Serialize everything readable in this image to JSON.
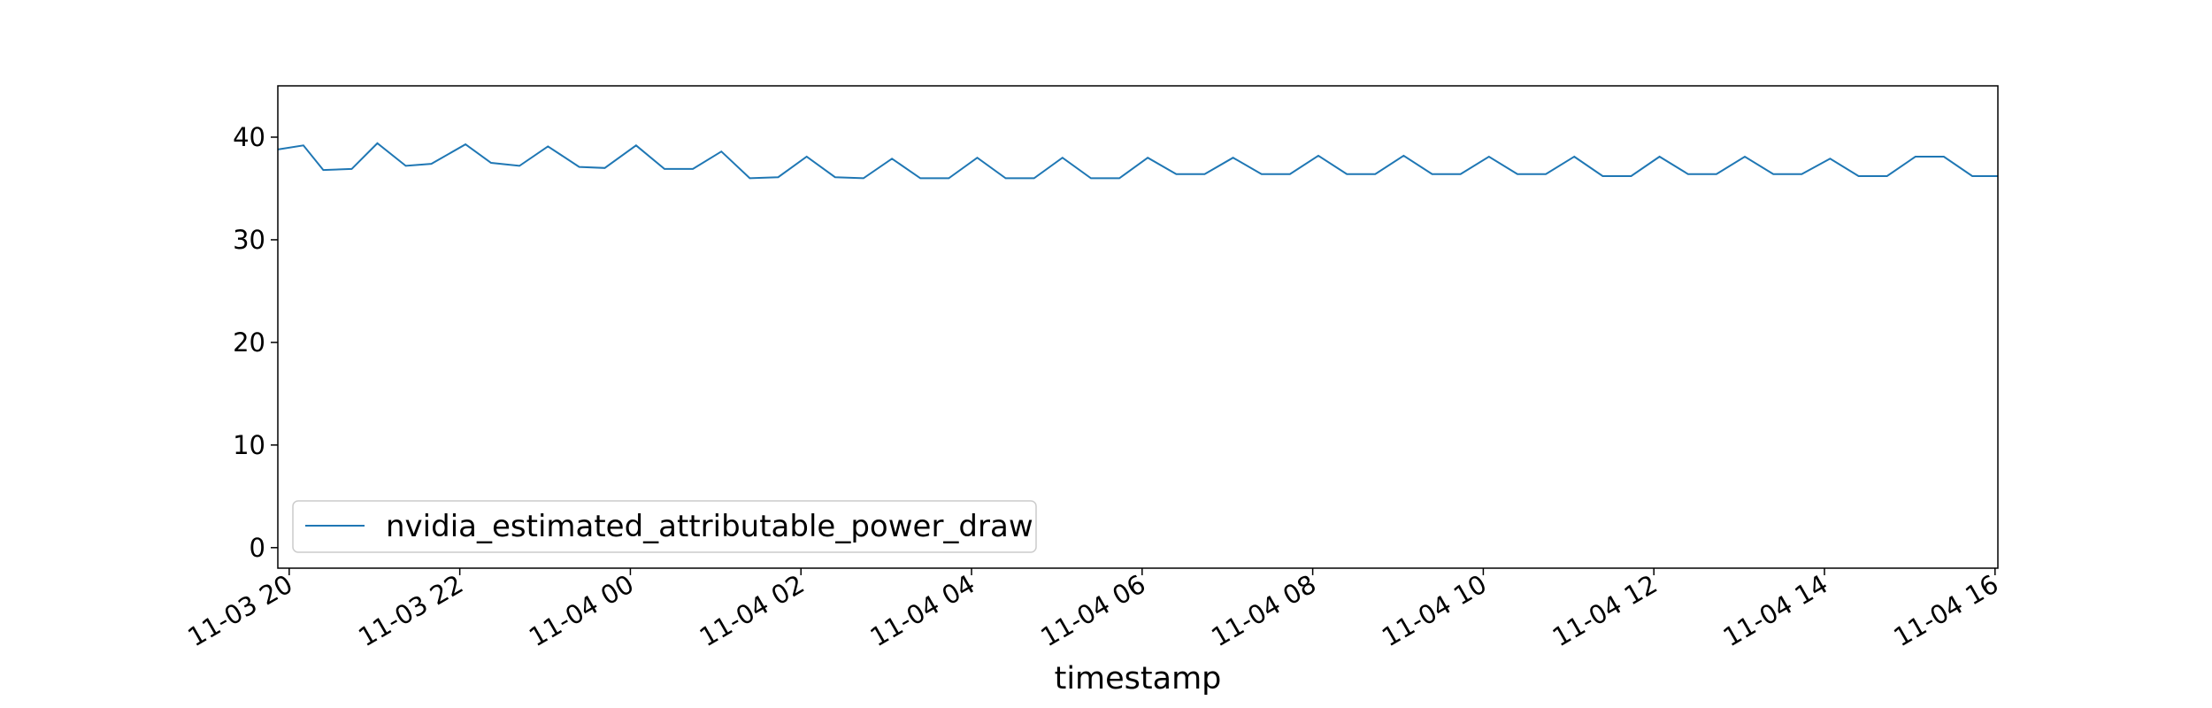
{
  "chart_data": {
    "type": "line",
    "title": "",
    "xlabel": "timestamp",
    "ylabel": "",
    "x_type": "datetime",
    "x_range": [
      "2024-11-03 19:52",
      "2024-11-04 16:02"
    ],
    "ylim": [
      -2,
      45
    ],
    "yticks": [
      0,
      10,
      20,
      30,
      40
    ],
    "xticks": [
      {
        "value": "2024-11-03 20:00",
        "label": "11-03 20"
      },
      {
        "value": "2024-11-03 22:00",
        "label": "11-03 22"
      },
      {
        "value": "2024-11-04 00:00",
        "label": "11-04 00"
      },
      {
        "value": "2024-11-04 02:00",
        "label": "11-04 02"
      },
      {
        "value": "2024-11-04 04:00",
        "label": "11-04 04"
      },
      {
        "value": "2024-11-04 06:00",
        "label": "11-04 06"
      },
      {
        "value": "2024-11-04 08:00",
        "label": "11-04 08"
      },
      {
        "value": "2024-11-04 10:00",
        "label": "11-04 10"
      },
      {
        "value": "2024-11-04 12:00",
        "label": "11-04 12"
      },
      {
        "value": "2024-11-04 14:00",
        "label": "11-04 14"
      },
      {
        "value": "2024-11-04 16:00",
        "label": "11-04 16"
      }
    ],
    "grid": false,
    "legend": {
      "position": "lower-left"
    },
    "series": [
      {
        "name": "nvidia_estimated_attributable_power_draw",
        "color": "#1f77b4",
        "x": [
          "2024-11-03 19:52",
          "2024-11-03 20:10",
          "2024-11-03 20:24",
          "2024-11-03 20:44",
          "2024-11-03 21:02",
          "2024-11-03 21:22",
          "2024-11-03 21:40",
          "2024-11-03 22:04",
          "2024-11-03 22:22",
          "2024-11-03 22:42",
          "2024-11-03 23:02",
          "2024-11-03 23:24",
          "2024-11-03 23:42",
          "2024-11-04 00:04",
          "2024-11-04 00:24",
          "2024-11-04 00:44",
          "2024-11-04 01:04",
          "2024-11-04 01:24",
          "2024-11-04 01:44",
          "2024-11-04 02:04",
          "2024-11-04 02:24",
          "2024-11-04 02:44",
          "2024-11-04 03:04",
          "2024-11-04 03:24",
          "2024-11-04 03:44",
          "2024-11-04 04:04",
          "2024-11-04 04:24",
          "2024-11-04 04:44",
          "2024-11-04 05:04",
          "2024-11-04 05:24",
          "2024-11-04 05:44",
          "2024-11-04 06:04",
          "2024-11-04 06:24",
          "2024-11-04 06:44",
          "2024-11-04 07:04",
          "2024-11-04 07:24",
          "2024-11-04 07:44",
          "2024-11-04 08:04",
          "2024-11-04 08:24",
          "2024-11-04 08:44",
          "2024-11-04 09:04",
          "2024-11-04 09:24",
          "2024-11-04 09:44",
          "2024-11-04 10:04",
          "2024-11-04 10:24",
          "2024-11-04 10:44",
          "2024-11-04 11:04",
          "2024-11-04 11:24",
          "2024-11-04 11:44",
          "2024-11-04 12:04",
          "2024-11-04 12:24",
          "2024-11-04 12:44",
          "2024-11-04 13:04",
          "2024-11-04 13:24",
          "2024-11-04 13:44",
          "2024-11-04 14:04",
          "2024-11-04 14:24",
          "2024-11-04 14:44",
          "2024-11-04 15:04",
          "2024-11-04 15:24",
          "2024-11-04 15:44",
          "2024-11-04 16:02"
        ],
        "y": [
          38.8,
          39.2,
          36.8,
          36.9,
          39.4,
          37.2,
          37.4,
          39.3,
          37.5,
          37.2,
          39.1,
          37.1,
          37.0,
          39.2,
          36.9,
          36.9,
          38.6,
          36.0,
          36.1,
          38.1,
          36.1,
          36.0,
          37.9,
          36.0,
          36.0,
          38.0,
          36.0,
          36.0,
          38.0,
          36.0,
          36.0,
          38.0,
          36.4,
          36.4,
          38.0,
          36.4,
          36.4,
          38.2,
          36.4,
          36.4,
          38.2,
          36.4,
          36.4,
          38.1,
          36.4,
          36.4,
          38.1,
          36.2,
          36.2,
          38.1,
          36.4,
          36.4,
          38.1,
          36.4,
          36.4,
          37.9,
          36.2,
          36.2,
          38.1,
          38.1,
          36.2,
          36.2
        ]
      }
    ]
  }
}
